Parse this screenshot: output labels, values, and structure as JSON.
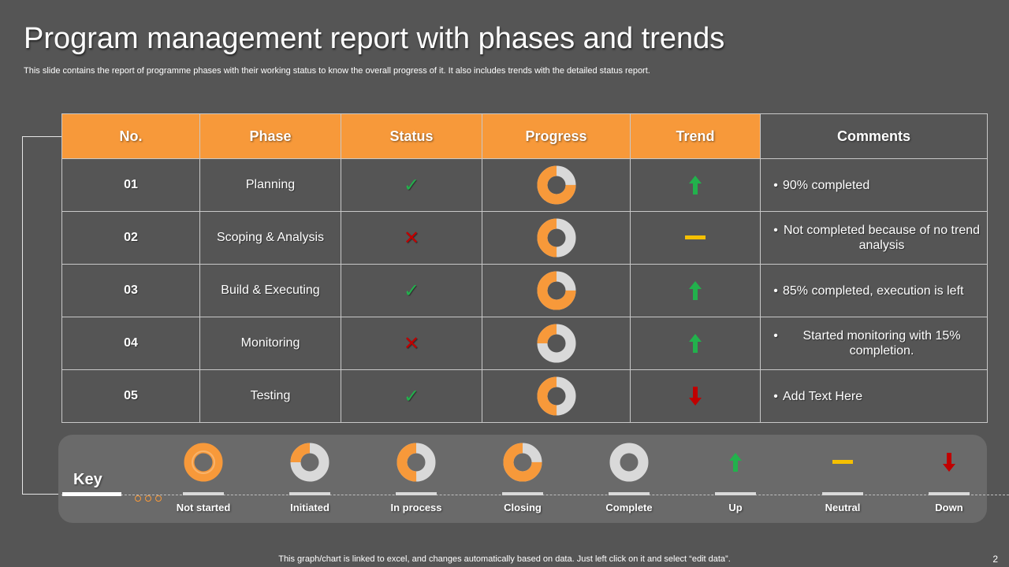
{
  "title": "Program management report with phases and trends",
  "subtitle": "This slide contains the report of programme phases with their working status to know the overall progress of it. It also includes trends with the detailed status report.",
  "colors": {
    "accent": "#f7993a",
    "background": "#555555",
    "up": "#22b14c",
    "down": "#c00000",
    "neutral": "#f5c000",
    "grey": "#d9d9d9"
  },
  "table": {
    "headers": {
      "no": "No.",
      "phase": "Phase",
      "status": "Status",
      "progress": "Progress",
      "trend": "Trend",
      "comments": "Comments"
    },
    "rows": [
      {
        "no": "01",
        "phase": "Planning",
        "status": "check",
        "progress": 0.75,
        "trend": "up",
        "comments": [
          "90% completed"
        ]
      },
      {
        "no": "02",
        "phase": "Scoping & Analysis",
        "status": "cross",
        "progress": 0.5,
        "trend": "neutral",
        "comments": [
          "Not completed because of no trend analysis"
        ]
      },
      {
        "no": "03",
        "phase": "Build & Executing",
        "status": "check",
        "progress": 0.75,
        "trend": "up",
        "comments": [
          "85% completed, execution is left"
        ]
      },
      {
        "no": "04",
        "phase": "Monitoring",
        "status": "cross",
        "progress": 0.25,
        "trend": "up",
        "comments": [
          "Started monitoring with 15% completion."
        ]
      },
      {
        "no": "05",
        "phase": "Testing",
        "status": "check",
        "progress": 0.5,
        "trend": "down",
        "comments": [
          "Add Text Here"
        ]
      }
    ]
  },
  "key": {
    "label": "Key",
    "items": [
      {
        "label": "Not started",
        "kind": "donut",
        "progress": 1.0,
        "variant": "not-started"
      },
      {
        "label": "Initiated",
        "kind": "donut",
        "progress": 0.25
      },
      {
        "label": "In process",
        "kind": "donut",
        "progress": 0.5
      },
      {
        "label": "Closing",
        "kind": "donut",
        "progress": 0.75
      },
      {
        "label": "Complete",
        "kind": "donut",
        "progress": 0
      },
      {
        "label": "Up",
        "kind": "trend",
        "trend": "up"
      },
      {
        "label": "Neutral",
        "kind": "trend",
        "trend": "neutral"
      },
      {
        "label": "Down",
        "kind": "trend",
        "trend": "down"
      }
    ]
  },
  "status_symbols": {
    "check": "✓",
    "cross": "✕"
  },
  "footer": "This graph/chart is linked to excel, and changes automatically based on data. Just left click on it and select “edit data”.",
  "page_number": "2"
}
